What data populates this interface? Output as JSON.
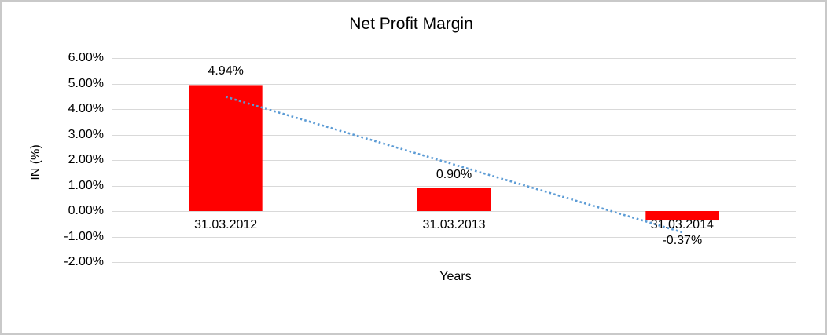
{
  "frame": {
    "background": "#ffffff",
    "border_color": "#c9c9c9"
  },
  "chart_data": {
    "type": "bar",
    "title": "Net Profit Margin",
    "xlabel": "Years",
    "ylabel": "IN (%)",
    "categories": [
      "31.03.2012",
      "31.03.2013",
      "31.03.2014"
    ],
    "series": [
      {
        "name": "Net Profit Margin",
        "values": [
          4.94,
          0.9,
          -0.37
        ],
        "data_labels": [
          "4.94%",
          "0.90%",
          "-0.37%"
        ],
        "color": "#ff0000"
      }
    ],
    "ylim": [
      -2,
      6
    ],
    "yticks": [
      {
        "value": 6,
        "label": "6.00%"
      },
      {
        "value": 5,
        "label": "5.00%"
      },
      {
        "value": 4,
        "label": "4.00%"
      },
      {
        "value": 3,
        "label": "3.00%"
      },
      {
        "value": 2,
        "label": "2.00%"
      },
      {
        "value": 1,
        "label": "1.00%"
      },
      {
        "value": 0,
        "label": "0.00%"
      },
      {
        "value": -1,
        "label": "-1.00%"
      },
      {
        "value": -2,
        "label": "-2.00%"
      }
    ],
    "grid": true,
    "gridline_color": "#d9d9d9",
    "legend_position": "none",
    "trendline": {
      "type": "linear",
      "style": "dotted",
      "color": "#5b9bd5",
      "start_value": 4.48,
      "end_value": -0.83
    }
  }
}
